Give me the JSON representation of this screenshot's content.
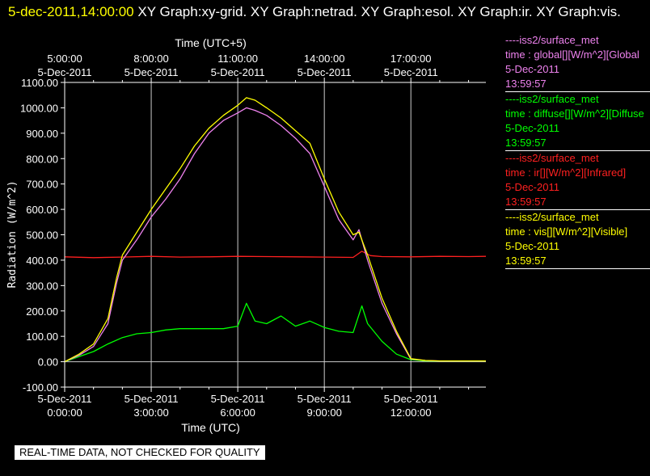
{
  "header": {
    "datetime": "5-dec-2011,14:00:00",
    "graphs": "XY Graph:xy-grid.  XY Graph:netrad.  XY Graph:esol.  XY Graph:ir.  XY Graph:vis."
  },
  "legend": [
    {
      "source": "----iss2/surface_met",
      "variable": "time : global[][W/m^2][Global",
      "date": "5-Dec-2011",
      "time": "13:59:57",
      "color": "#ee82ee"
    },
    {
      "source": "----iss2/surface_met",
      "variable": "time : diffuse[][W/m^2][Diffuse",
      "date": "5-Dec-2011",
      "time": "13:59:57",
      "color": "#00ff00"
    },
    {
      "source": "----iss2/surface_met",
      "variable": "time : ir[][W/m^2][Infrared]",
      "date": "5-Dec-2011",
      "time": "13:59:57",
      "color": "#ff2020"
    },
    {
      "source": "----iss2/surface_met",
      "variable": "time : vis[][W/m^2][Visible]",
      "date": "5-Dec-2011",
      "time": "13:59:57",
      "color": "#ffff00"
    }
  ],
  "disclaimer": "REAL-TIME DATA, NOT CHECKED FOR QUALITY",
  "chart_data": {
    "type": "line",
    "xlabel": "Time (UTC)",
    "x2label": "Time (UTC+5)",
    "ylabel": "Radiation (W/m^2)",
    "xlim": [
      0,
      14.6
    ],
    "ylim": [
      -100,
      1100
    ],
    "grid": true,
    "yticks": [
      "1100.00",
      "1000.00",
      "900.00",
      "800.00",
      "700.00",
      "600.00",
      "500.00",
      "400.00",
      "300.00",
      "200.00",
      "100.00",
      "0.00",
      "-100.00"
    ],
    "bottom_ticks": [
      {
        "date": "5-Dec-2011",
        "time": "0:00:00"
      },
      {
        "date": "5-Dec-2011",
        "time": "3:00:00"
      },
      {
        "date": "5-Dec-2011",
        "time": "6:00:00"
      },
      {
        "date": "5-Dec-2011",
        "time": "9:00:00"
      },
      {
        "date": "5-Dec-2011",
        "time": "12:00:00"
      }
    ],
    "top_ticks": [
      {
        "time": "5:00:00",
        "date": "5-Dec-2011"
      },
      {
        "time": "8:00:00",
        "date": "5-Dec-2011"
      },
      {
        "time": "11:00:00",
        "date": "5-Dec-2011"
      },
      {
        "time": "14:00:00",
        "date": "5-Dec-2011"
      },
      {
        "time": "17:00:00",
        "date": "5-Dec-2011"
      }
    ],
    "series": [
      {
        "name": "global",
        "color": "#ee82ee",
        "x": [
          0,
          0.5,
          1.0,
          1.5,
          1.8,
          2.0,
          2.5,
          3.0,
          3.5,
          4.0,
          4.5,
          5.0,
          5.5,
          6.0,
          6.3,
          6.6,
          7.0,
          7.5,
          8.0,
          8.5,
          9.0,
          9.5,
          10.0,
          10.2,
          10.5,
          11.0,
          11.5,
          12.0,
          12.5,
          13.0,
          14.0,
          14.6
        ],
        "y": [
          0,
          25,
          60,
          150,
          310,
          400,
          480,
          570,
          640,
          720,
          820,
          900,
          950,
          980,
          1000,
          990,
          970,
          930,
          880,
          820,
          690,
          560,
          480,
          520,
          400,
          230,
          110,
          10,
          5,
          3,
          3,
          3
        ]
      },
      {
        "name": "diffuse",
        "color": "#00ff00",
        "x": [
          0,
          0.5,
          1.0,
          1.5,
          2.0,
          2.5,
          3.0,
          3.5,
          4.0,
          4.5,
          5.0,
          5.5,
          6.0,
          6.3,
          6.6,
          7.0,
          7.5,
          8.0,
          8.5,
          9.0,
          9.5,
          10.0,
          10.3,
          10.5,
          11.0,
          11.5,
          12.0,
          12.5,
          13.0,
          14.0,
          14.6
        ],
        "y": [
          0,
          20,
          40,
          70,
          95,
          110,
          115,
          125,
          130,
          130,
          130,
          130,
          140,
          230,
          160,
          150,
          180,
          140,
          160,
          135,
          120,
          115,
          220,
          150,
          80,
          30,
          8,
          3,
          3,
          3,
          3
        ]
      },
      {
        "name": "ir",
        "color": "#ff2020",
        "x": [
          0,
          1,
          2,
          3,
          4,
          5,
          6,
          7,
          8,
          9,
          10,
          10.3,
          10.6,
          11,
          12,
          13,
          14,
          14.6
        ],
        "y": [
          413,
          410,
          412,
          415,
          412,
          413,
          415,
          414,
          413,
          412,
          411,
          435,
          418,
          414,
          413,
          415,
          414,
          415
        ]
      },
      {
        "name": "vis",
        "color": "#ffff00",
        "x": [
          0,
          0.5,
          1.0,
          1.5,
          1.8,
          2.0,
          2.5,
          3.0,
          3.5,
          4.0,
          4.5,
          5.0,
          5.5,
          6.0,
          6.3,
          6.6,
          7.0,
          7.5,
          8.0,
          8.5,
          9.0,
          9.5,
          10.0,
          10.2,
          10.5,
          11.0,
          11.5,
          12.0,
          12.5,
          13.0,
          14.0,
          14.6
        ],
        "y": [
          0,
          30,
          70,
          170,
          330,
          420,
          510,
          600,
          680,
          760,
          850,
          920,
          970,
          1010,
          1040,
          1030,
          1000,
          960,
          910,
          860,
          720,
          590,
          500,
          510,
          420,
          250,
          120,
          12,
          5,
          3,
          3,
          3
        ]
      }
    ]
  }
}
